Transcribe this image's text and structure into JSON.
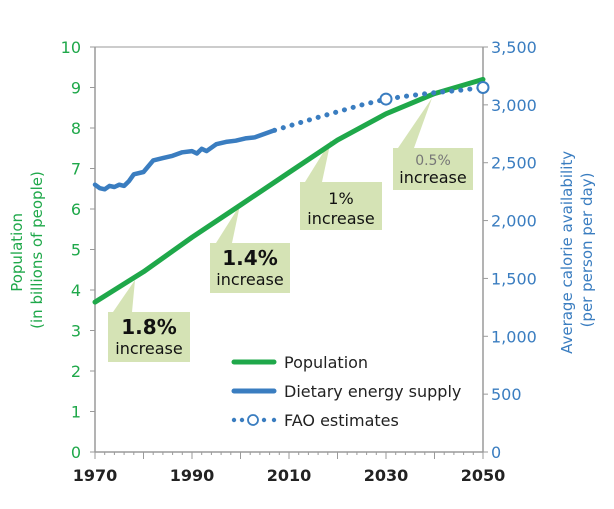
{
  "chart_data": {
    "type": "line",
    "xlabel": "",
    "ylabel_left": "Population\n(in billions of people)",
    "ylabel_right": "Average calorie availability\n(per person per day)",
    "xlim": [
      1970,
      2050
    ],
    "ylim_left": [
      0,
      10
    ],
    "ylim_right": [
      0,
      3500
    ],
    "x_ticks": [
      "1970",
      "1990",
      "2010",
      "2030",
      "2050"
    ],
    "y_ticks_left": [
      "0",
      "1",
      "2",
      "3",
      "4",
      "5",
      "6",
      "7",
      "8",
      "9",
      "10"
    ],
    "y_ticks_right": [
      "0",
      "500",
      "1,000",
      "1,500",
      "2,000",
      "2,500",
      "3,000",
      "3,500"
    ],
    "grid": false,
    "legend": "bottom-center",
    "series": [
      {
        "name": "Population",
        "axis": "left",
        "color": "#1fa84a",
        "style": "solid",
        "x": [
          1970,
          1980,
          1990,
          2000,
          2010,
          2020,
          2030,
          2040,
          2050
        ],
        "y": [
          3.7,
          4.45,
          5.3,
          6.1,
          6.9,
          7.7,
          8.35,
          8.85,
          9.2
        ]
      },
      {
        "name": "Dietary energy supply",
        "axis": "right",
        "color": "#3a7dc0",
        "style": "solid",
        "x": [
          1970,
          1971,
          1972,
          1973,
          1974,
          1975,
          1976,
          1977,
          1978,
          1980,
          1982,
          1984,
          1986,
          1988,
          1990,
          1991,
          1992,
          1993,
          1995,
          1997,
          1999,
          2001,
          2003,
          2005,
          2007
        ],
        "y": [
          2310,
          2280,
          2270,
          2300,
          2290,
          2310,
          2300,
          2340,
          2400,
          2420,
          2520,
          2540,
          2560,
          2590,
          2600,
          2580,
          2620,
          2600,
          2660,
          2680,
          2690,
          2710,
          2720,
          2750,
          2780
        ]
      },
      {
        "name": "FAO estimates",
        "axis": "right",
        "color": "#3a7dc0",
        "style": "dotted",
        "x": [
          2007,
          2015,
          2020,
          2025,
          2030,
          2035,
          2040,
          2045,
          2050
        ],
        "y": [
          2780,
          2880,
          2940,
          3000,
          3050,
          3080,
          3105,
          3125,
          3150
        ],
        "markers_at": [
          2030,
          2050
        ]
      }
    ],
    "annotations": [
      {
        "rate": "1.8%",
        "text": "increase"
      },
      {
        "rate": "1.4%",
        "text": "increase"
      },
      {
        "rate": "1%",
        "text": "increase"
      },
      {
        "rate": "0.5%",
        "text": "increase"
      }
    ],
    "annotation_fill": "#d5e3b5"
  }
}
